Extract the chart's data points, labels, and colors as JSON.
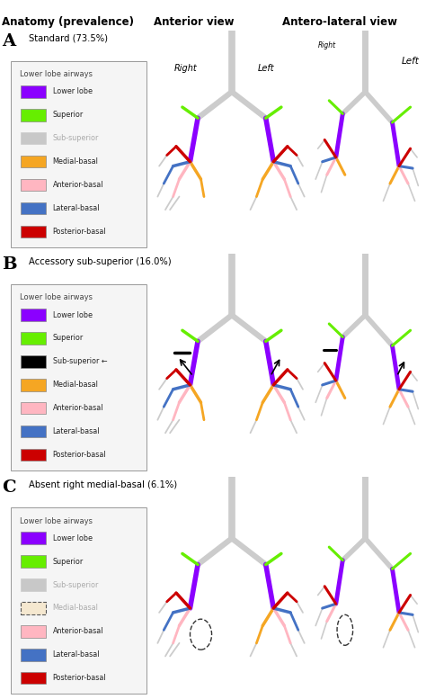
{
  "title": "Anatomy (prevalence)",
  "col2_title": "Anterior view",
  "col3_title": "Antero-lateral view",
  "panels": [
    {
      "label": "A",
      "subtitle": "Standard (73.5%)",
      "legend_title": "Lower lobe airways",
      "legend_items": [
        {
          "color": "#8B00FF",
          "text": "Lower lobe",
          "faded": false,
          "dashed_box": false
        },
        {
          "color": "#66EE00",
          "text": "Superior",
          "faded": false,
          "dashed_box": false
        },
        {
          "color": "#C8C8C8",
          "text": "Sub-superior",
          "faded": true,
          "dashed_box": false
        },
        {
          "color": "#F5A623",
          "text": "Medial-basal",
          "faded": false,
          "dashed_box": false
        },
        {
          "color": "#FFB6C1",
          "text": "Anterior-basal",
          "faded": false,
          "dashed_box": false
        },
        {
          "color": "#4472C4",
          "text": "Lateral-basal",
          "faded": false,
          "dashed_box": false
        },
        {
          "color": "#CC0000",
          "text": "Posterior-basal",
          "faded": false,
          "dashed_box": false
        }
      ],
      "show_right_left_A": true,
      "sub_superior_black": false,
      "sub_superior_arrow": false,
      "medial_basal_dashed": false,
      "medial_basal_faded": false
    },
    {
      "label": "B",
      "subtitle": "Accessory sub-superior (16.0%)",
      "legend_title": "Lower lobe airways",
      "legend_items": [
        {
          "color": "#8B00FF",
          "text": "Lower lobe",
          "faded": false,
          "dashed_box": false
        },
        {
          "color": "#66EE00",
          "text": "Superior",
          "faded": false,
          "dashed_box": false
        },
        {
          "color": "#000000",
          "text": "Sub-superior",
          "faded": false,
          "dashed_box": false,
          "arrow": true
        },
        {
          "color": "#F5A623",
          "text": "Medial-basal",
          "faded": false,
          "dashed_box": false
        },
        {
          "color": "#FFB6C1",
          "text": "Anterior-basal",
          "faded": false,
          "dashed_box": false
        },
        {
          "color": "#4472C4",
          "text": "Lateral-basal",
          "faded": false,
          "dashed_box": false
        },
        {
          "color": "#CC0000",
          "text": "Posterior-basal",
          "faded": false,
          "dashed_box": false
        }
      ],
      "show_right_left_A": false,
      "sub_superior_black": true,
      "sub_superior_arrow": true,
      "medial_basal_dashed": false,
      "medial_basal_faded": false
    },
    {
      "label": "C",
      "subtitle": "Absent right medial-basal (6.1%)",
      "legend_title": "Lower lobe airways",
      "legend_items": [
        {
          "color": "#8B00FF",
          "text": "Lower lobe",
          "faded": false,
          "dashed_box": false
        },
        {
          "color": "#66EE00",
          "text": "Superior",
          "faded": false,
          "dashed_box": false
        },
        {
          "color": "#C8C8C8",
          "text": "Sub-superior",
          "faded": true,
          "dashed_box": false
        },
        {
          "color": "#F5E8D0",
          "text": "Medial-basal",
          "faded": true,
          "dashed_box": true
        },
        {
          "color": "#FFB6C1",
          "text": "Anterior-basal",
          "faded": false,
          "dashed_box": false
        },
        {
          "color": "#4472C4",
          "text": "Lateral-basal",
          "faded": false,
          "dashed_box": false
        },
        {
          "color": "#CC0000",
          "text": "Posterior-basal",
          "faded": false,
          "dashed_box": false
        }
      ],
      "show_right_left_A": false,
      "sub_superior_black": false,
      "sub_superior_arrow": false,
      "medial_basal_dashed": true,
      "medial_basal_faded": true
    }
  ],
  "bg_color": "#FFFFFF",
  "legend_bg": "#F5F5F5",
  "legend_border": "#999999",
  "airway_color": "#CCCCCC",
  "airway_edge": "#AAAAAA"
}
